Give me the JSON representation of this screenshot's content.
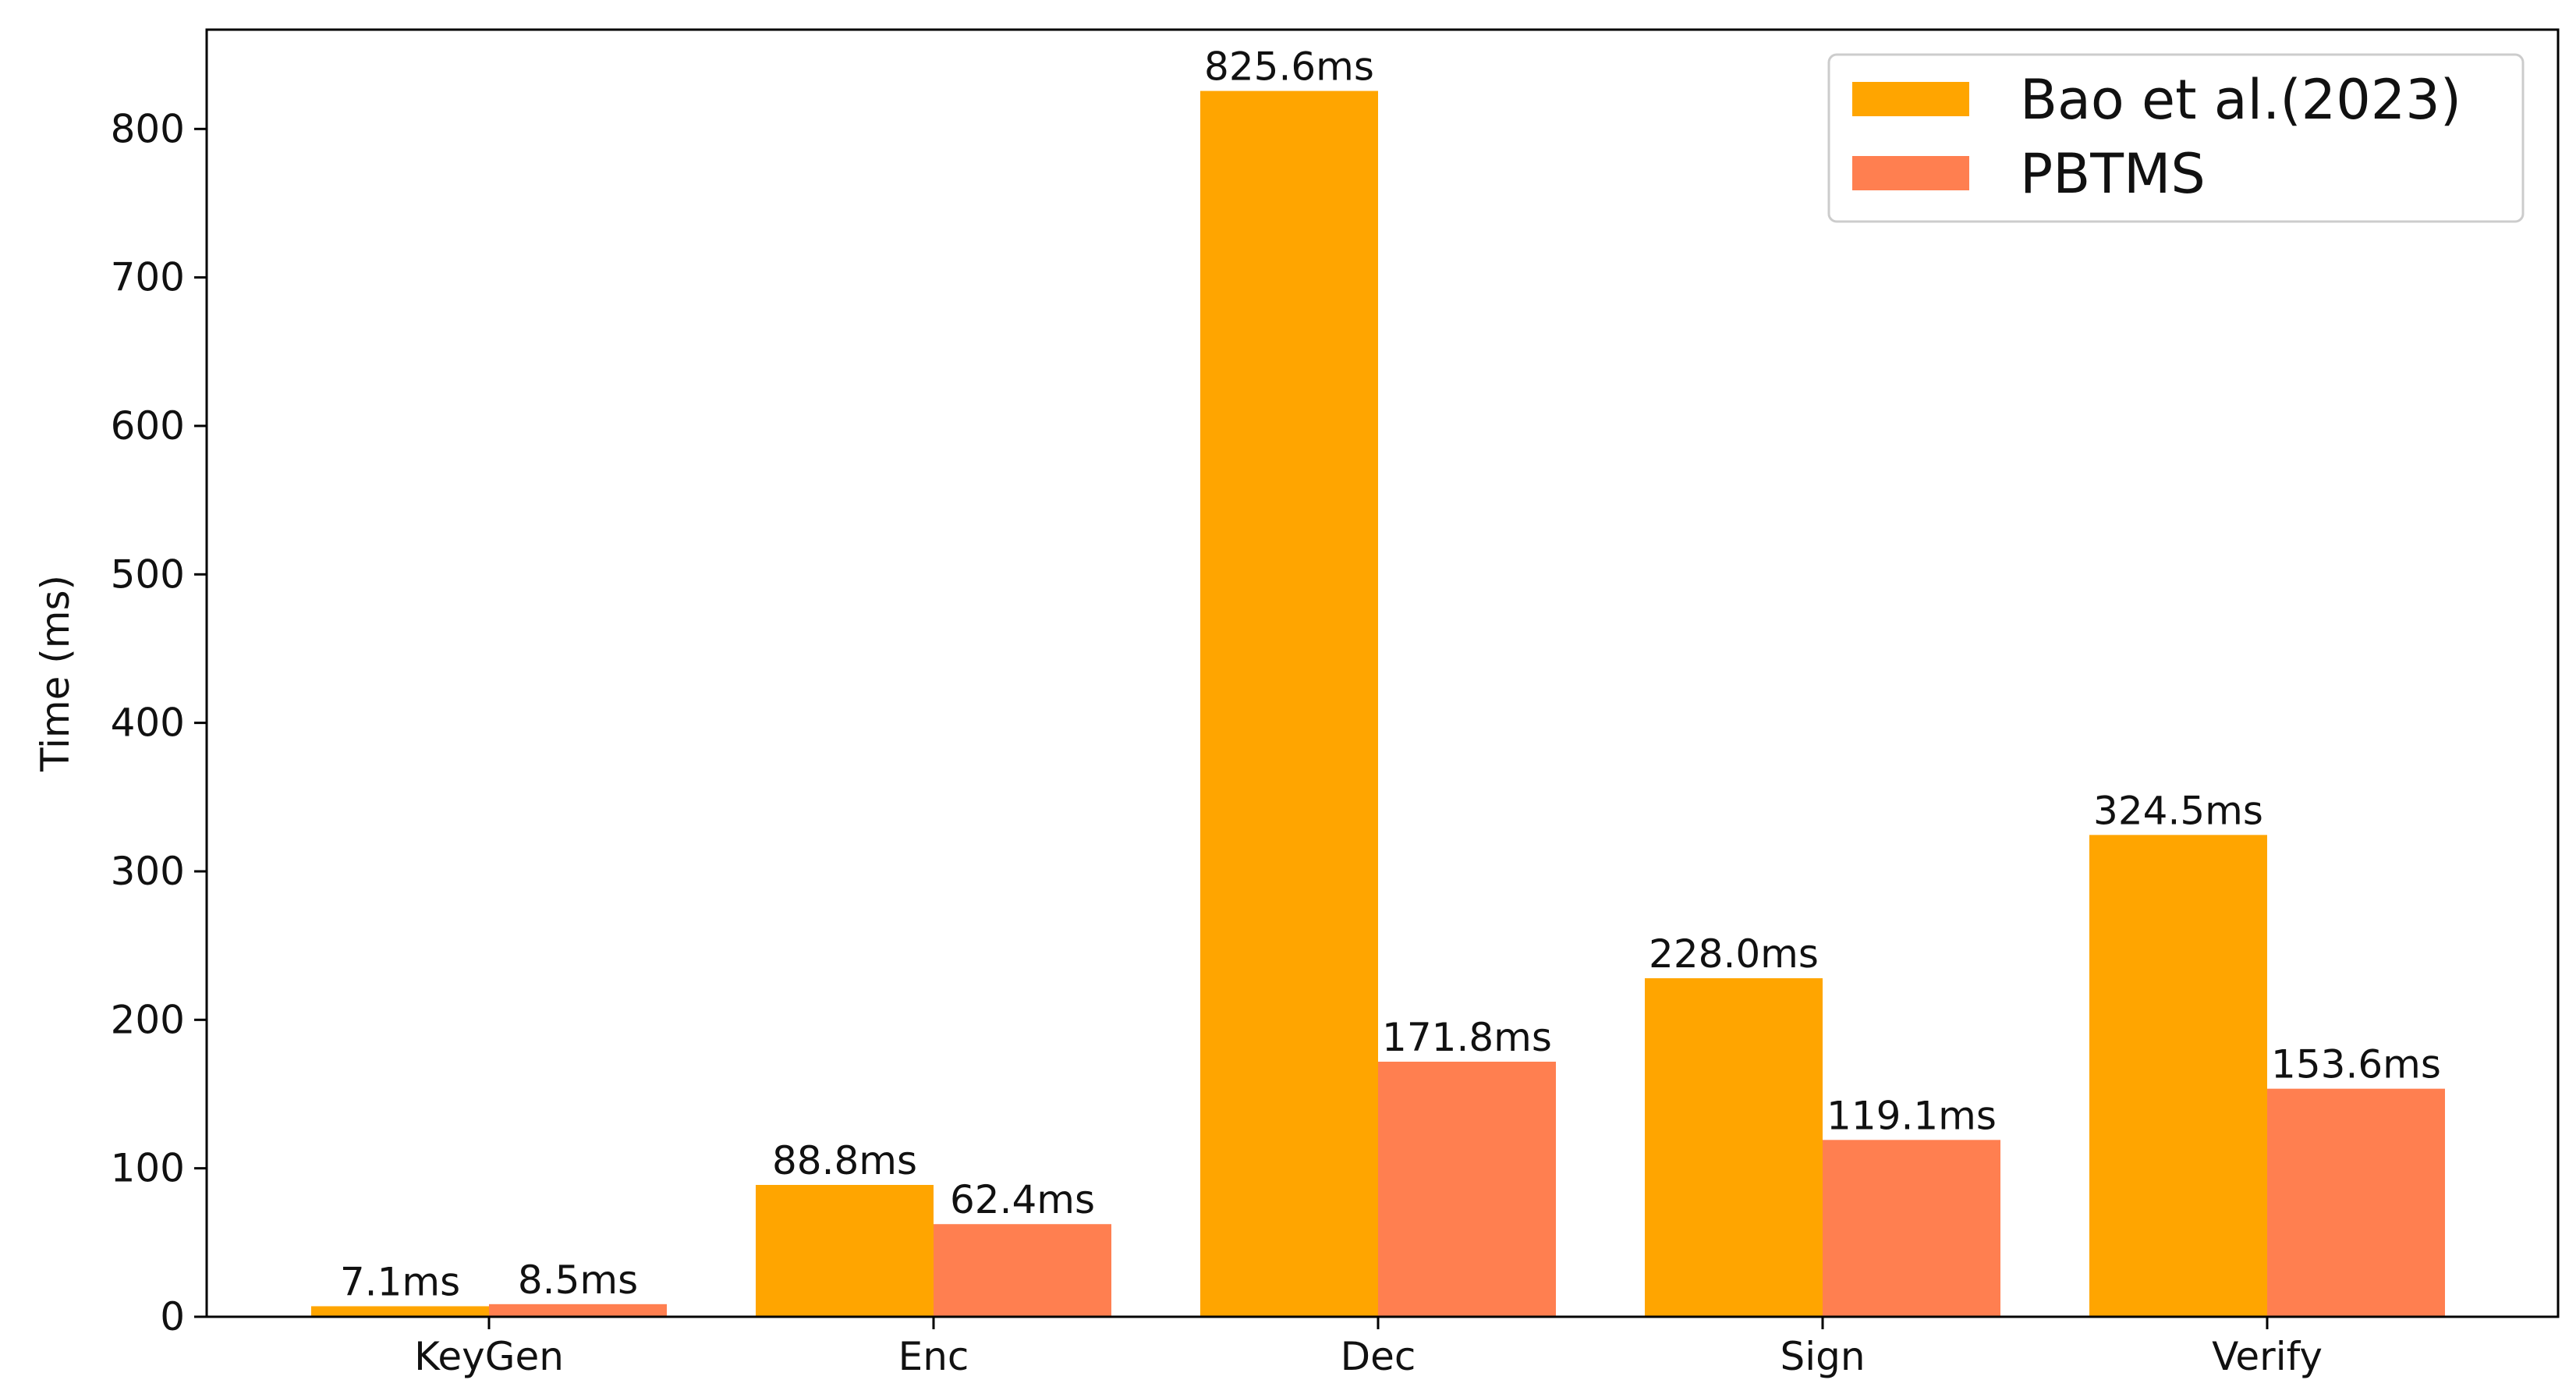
{
  "chart_data": {
    "type": "bar",
    "categories": [
      "KeyGen",
      "Enc",
      "Dec",
      "Sign",
      "Verify"
    ],
    "series": [
      {
        "name": "Bao et al.(2023)",
        "color": "#FFA500",
        "values": [
          7.1,
          88.8,
          825.6,
          228.0,
          324.5
        ],
        "labels": [
          "7.1ms",
          "88.8ms",
          "825.6ms",
          "228.0ms",
          "324.5ms"
        ]
      },
      {
        "name": "PBTMS",
        "color": "#FF7F50",
        "values": [
          8.5,
          62.4,
          171.8,
          119.1,
          153.6
        ],
        "labels": [
          "8.5ms",
          "62.4ms",
          "171.8ms",
          "119.1ms",
          "153.6ms"
        ]
      }
    ],
    "title": "",
    "xlabel": "",
    "ylabel": "Time (ms)",
    "ylim": [
      0,
      866.88
    ],
    "yticks": [
      0,
      100,
      200,
      300,
      400,
      500,
      600,
      700,
      800
    ],
    "grid": false,
    "legend_position": "top-right"
  }
}
